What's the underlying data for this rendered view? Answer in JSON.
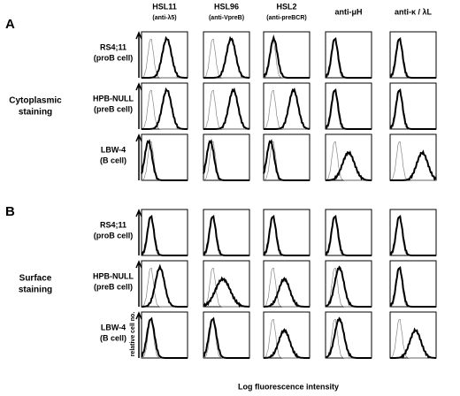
{
  "panels": [
    {
      "label": "A",
      "group": [
        "Cytoplasmic",
        "staining"
      ],
      "rows": [
        {
          "line": "RS4;11",
          "cell": "(proB cell)"
        },
        {
          "line": "HPB-NULL",
          "cell": "(preB cell)"
        },
        {
          "line": "LBW-4",
          "cell": "(B cell)"
        }
      ]
    },
    {
      "label": "B",
      "group": [
        "Surface",
        "staining"
      ],
      "rows": [
        {
          "line": "RS4;11",
          "cell": "(proB cell)"
        },
        {
          "line": "HPB-NULL",
          "cell": "(preB cell)"
        },
        {
          "line": "LBW-4",
          "cell": "(B cell)"
        }
      ]
    }
  ],
  "columns": [
    {
      "name": "HSL11",
      "target": "(anti-λ5)"
    },
    {
      "name": "HSL96",
      "target": "(anti-VpreB)"
    },
    {
      "name": "HSL2",
      "target": "(anti-preBCR)"
    },
    {
      "name": "anti-μH"
    },
    {
      "name": "anti-κ / λL"
    }
  ],
  "y_axis_label": "relative cell no.",
  "x_axis_label": "Log fluorescence intensity"
}
